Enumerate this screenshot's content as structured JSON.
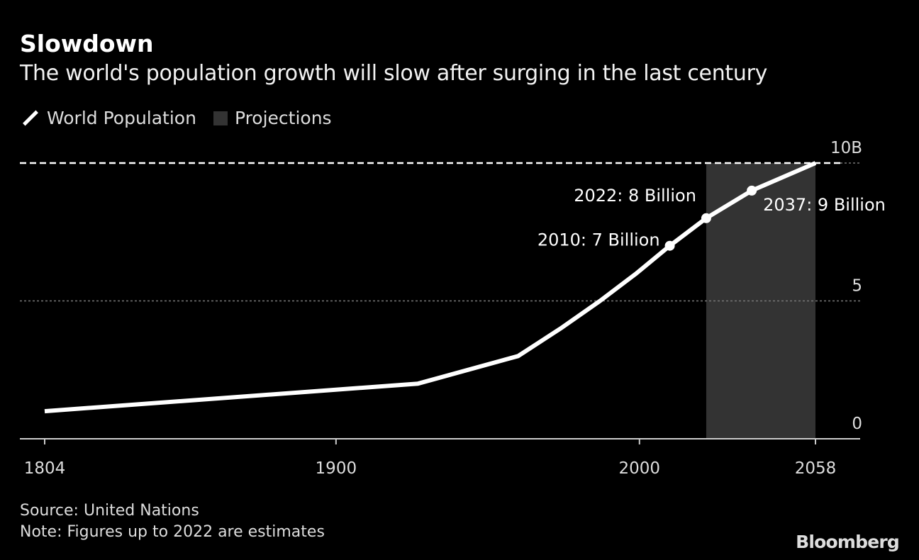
{
  "title": "Slowdown",
  "subtitle": "The world's population growth will slow after surging in the last century",
  "legend": {
    "line_label": "World Population",
    "box_label": "Projections"
  },
  "footer": {
    "source": "Source: United Nations",
    "note": "Note: Figures up to 2022 are estimates"
  },
  "brand": "Bloomberg",
  "colors": {
    "background": "#000000",
    "line": "#ffffff",
    "projection": "#333333",
    "grid": "#777777"
  },
  "chart_data": {
    "type": "line",
    "xlim": [
      1804,
      2058
    ],
    "ylim": [
      0,
      10
    ],
    "x_ticks": [
      {
        "value": 1804,
        "label": "1804"
      },
      {
        "value": 1900,
        "label": "1900"
      },
      {
        "value": 2000,
        "label": "2000"
      },
      {
        "value": 2058,
        "label": "2058"
      }
    ],
    "y_ticks": [
      {
        "value": 0,
        "label": "0"
      },
      {
        "value": 5,
        "label": "5"
      },
      {
        "value": 10,
        "label": "10B"
      }
    ],
    "series": [
      {
        "name": "World Population",
        "unit": "billion",
        "x": [
          1804,
          1927,
          1960,
          1974,
          1987,
          1999,
          2010,
          2022,
          2037,
          2058
        ],
        "y": [
          1,
          2,
          3,
          4,
          5,
          6,
          7,
          8,
          9,
          10
        ]
      }
    ],
    "shaded_region": {
      "label": "Projections",
      "x": [
        2022,
        2058
      ]
    },
    "reference_line": {
      "y": 10,
      "style": "dashed"
    },
    "annotations": [
      {
        "x": 2010,
        "y": 7,
        "text": "2010: 7 Billion"
      },
      {
        "x": 2022,
        "y": 8,
        "text": "2022: 8 Billion"
      },
      {
        "x": 2037,
        "y": 9,
        "text": "2037: 9 Billion"
      }
    ]
  }
}
